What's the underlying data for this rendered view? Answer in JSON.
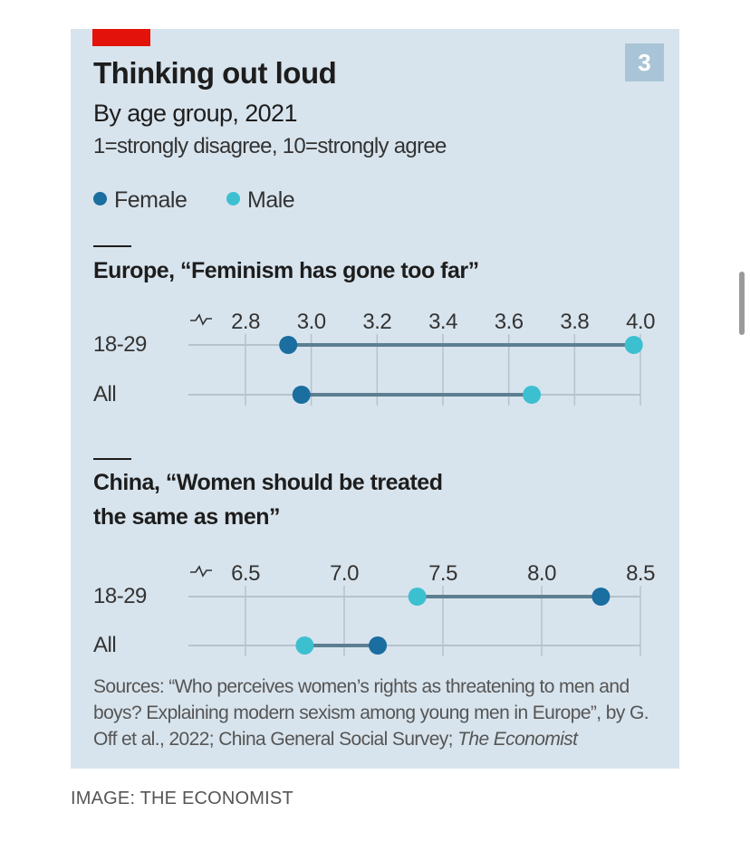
{
  "chart_data": {
    "title": "Thinking out loud",
    "subtitle": "By age group, 2021",
    "note": "1=strongly disagree, 10=strongly agree",
    "badge": "3",
    "legend": [
      {
        "name": "Female",
        "color": "#1a6ea0"
      },
      {
        "name": "Male",
        "color": "#3cc0d0"
      }
    ],
    "legend_placement": "top-left",
    "panels": [
      {
        "type": "dot-range",
        "title": "Europe, “Feminism has gone too far”",
        "categories": [
          "18-29",
          "All"
        ],
        "xlim": [
          2.8,
          4.0
        ],
        "ticks": [
          "2.8",
          "3.0",
          "3.2",
          "3.4",
          "3.6",
          "3.8",
          "4.0"
        ],
        "axis_break": true,
        "series": [
          {
            "name": "Female",
            "values": [
              2.93,
              2.97
            ]
          },
          {
            "name": "Male",
            "values": [
              3.98,
              3.67
            ]
          }
        ]
      },
      {
        "type": "dot-range",
        "title_line1": "China, “Women should be treated",
        "title_line2": "the same as men”",
        "categories": [
          "18-29",
          "All"
        ],
        "xlim": [
          6.5,
          8.5
        ],
        "ticks": [
          "6.5",
          "7.0",
          "7.5",
          "8.0",
          "8.5"
        ],
        "axis_break": true,
        "series": [
          {
            "name": "Female",
            "values": [
              8.3,
              7.17
            ]
          },
          {
            "name": "Male",
            "values": [
              7.37,
              6.8
            ]
          }
        ]
      }
    ],
    "source_prefix": "Sources: “Who perceives women’s rights as threatening to men and boys? Explaining modern sexism among young men in Europe”, by G. Off et al., 2022; China General Social Survey; ",
    "source_italic": "The Economist"
  },
  "caption": "IMAGE: THE ECONOMIST"
}
